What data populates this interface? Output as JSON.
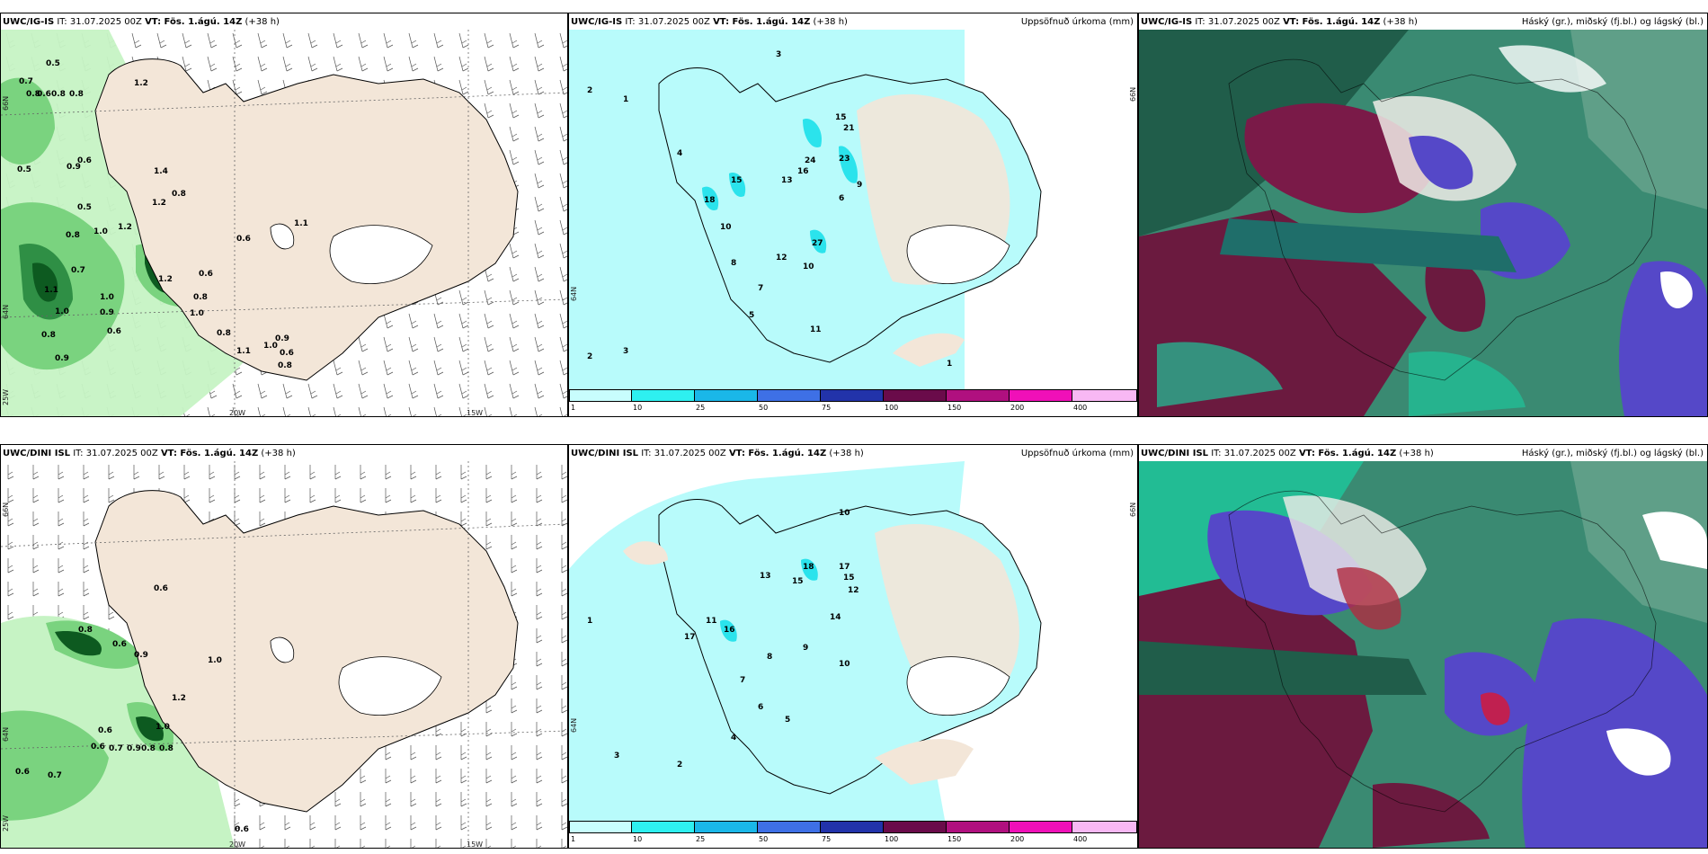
{
  "colors": {
    "land": "#f3e6d8",
    "precip_light": "#b8fbfb",
    "precip_mid": "#2be3ec",
    "wind_light": "#c6f3c4",
    "wind_mid": "#7ad37f",
    "wind_dark": "#0d5a20",
    "cloud_dark_green": "#205d4a",
    "cloud_teal": "#1ec49a",
    "cloud_purple": "#6b1a3f",
    "cloud_blue": "#5548c8"
  },
  "panels": [
    {
      "id": "ig-wind",
      "model": "UWC/IG-IS",
      "it": "IT: 31.07.2025 00Z",
      "vt": "VT: Fös. 1.ágú. 14Z",
      "offset": "(+38 h)",
      "right_title": "",
      "ticks": {
        "lon_a": "20W",
        "lon_b": "15W",
        "lat_top": "66N",
        "lat_mid": "64N",
        "lon_left": "25W"
      },
      "values": [
        "0.5",
        "0.7",
        "0.6",
        "0.8",
        "0.8",
        "0.8",
        "1.2",
        "0.5",
        "0.6",
        "0.9",
        "1.4",
        "0.8",
        "1.2",
        "0.5",
        "0.8",
        "1.0",
        "1.2",
        "1.1",
        "0.6",
        "0.7",
        "1.1",
        "1.0",
        "1.2",
        "1.0",
        "0.9",
        "0.8",
        "1.0",
        "0.6",
        "0.8",
        "1.1",
        "1.0",
        "0.9",
        "0.6",
        "0.8",
        "0.8",
        "0.9",
        "0.6"
      ]
    },
    {
      "id": "ig-precip",
      "model": "UWC/IG-IS",
      "it": "IT: 31.07.2025 00Z",
      "vt": "VT: Fös. 1.ágú. 14Z",
      "offset": "(+38 h)",
      "right_title": "Uppsöfnuð úrkoma (mm)",
      "ticks": {
        "lat_top": "66N",
        "lat_mid": "64N"
      },
      "values": [
        "3",
        "2",
        "1",
        "4",
        "15",
        "24",
        "23",
        "21",
        "16",
        "15",
        "13",
        "6",
        "9",
        "18",
        "10",
        "27",
        "11",
        "12",
        "10",
        "8",
        "7",
        "5",
        "3",
        "2",
        "1"
      ],
      "colorbar": [
        {
          "label": "1",
          "color": "#c8fdfd"
        },
        {
          "label": "10",
          "color": "#2ef0f0"
        },
        {
          "label": "25",
          "color": "#1ab7e8"
        },
        {
          "label": "50",
          "color": "#3e70e6"
        },
        {
          "label": "75",
          "color": "#2233aa"
        },
        {
          "label": "100",
          "color": "#6a0b4a"
        },
        {
          "label": "150",
          "color": "#b0107f"
        },
        {
          "label": "200",
          "color": "#f010b8"
        },
        {
          "label": "400",
          "color": "#f8b8f4"
        }
      ]
    },
    {
      "id": "ig-cloud",
      "model": "UWC/IG-IS",
      "it": "IT: 31.07.2025 00Z",
      "vt": "VT: Fös. 1.ágú. 14Z",
      "offset": "(+38 h)",
      "right_title": "Háský (gr.), miðský (fj.bl.) og lágský (bl.)"
    },
    {
      "id": "dini-wind",
      "model": "UWC/DINI ISL",
      "it": "IT: 31.07.2025 00Z",
      "vt": "VT: Fös. 1.ágú. 14Z",
      "offset": "(+38 h)",
      "right_title": "",
      "ticks": {
        "lon_a": "20W",
        "lon_b": "15W",
        "lat_top": "66N",
        "lat_mid": "64N",
        "lon_left": "25W"
      },
      "values": [
        "0.6",
        "0.8",
        "0.6",
        "0.9",
        "1.0",
        "1.2",
        "1.0",
        "0.6",
        "0.8",
        "0.6",
        "0.7",
        "0.9",
        "0.8",
        "0.6",
        "0.7",
        "0.6"
      ]
    },
    {
      "id": "dini-precip",
      "model": "UWC/DINI ISL",
      "it": "IT: 31.07.2025 00Z",
      "vt": "VT: Fös. 1.ágú. 14Z",
      "offset": "(+38 h)",
      "right_title": "Uppsöfnuð úrkoma (mm)",
      "ticks": {
        "lat_top": "66N",
        "lat_mid": "64N"
      },
      "values": [
        "10",
        "18",
        "17",
        "15",
        "12",
        "13",
        "15",
        "11",
        "16",
        "17",
        "14",
        "10",
        "9",
        "8",
        "7",
        "6",
        "5",
        "4",
        "3",
        "2",
        "1"
      ],
      "colorbar": [
        {
          "label": "1",
          "color": "#c8fdfd"
        },
        {
          "label": "10",
          "color": "#2ef0f0"
        },
        {
          "label": "25",
          "color": "#1ab7e8"
        },
        {
          "label": "50",
          "color": "#3e70e6"
        },
        {
          "label": "75",
          "color": "#2233aa"
        },
        {
          "label": "100",
          "color": "#6a0b4a"
        },
        {
          "label": "150",
          "color": "#b0107f"
        },
        {
          "label": "200",
          "color": "#f010b8"
        },
        {
          "label": "400",
          "color": "#f8b8f4"
        }
      ]
    },
    {
      "id": "dini-cloud",
      "model": "UWC/DINI ISL",
      "it": "IT: 31.07.2025 00Z",
      "vt": "VT: Fös. 1.ágú. 14Z",
      "offset": "(+38 h)",
      "right_title": "Háský (gr.), miðský (fj.bl.) og lágský (bl.)"
    }
  ]
}
